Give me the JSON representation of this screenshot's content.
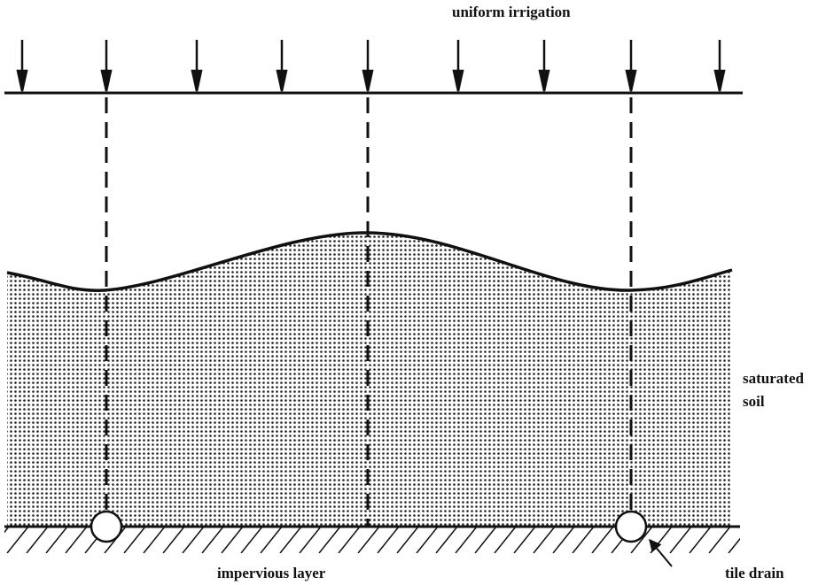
{
  "labels": {
    "irrigation": "uniform irrigation",
    "soil": "saturated soil",
    "layer": "impervious layer",
    "drain": "tile drain"
  }
}
